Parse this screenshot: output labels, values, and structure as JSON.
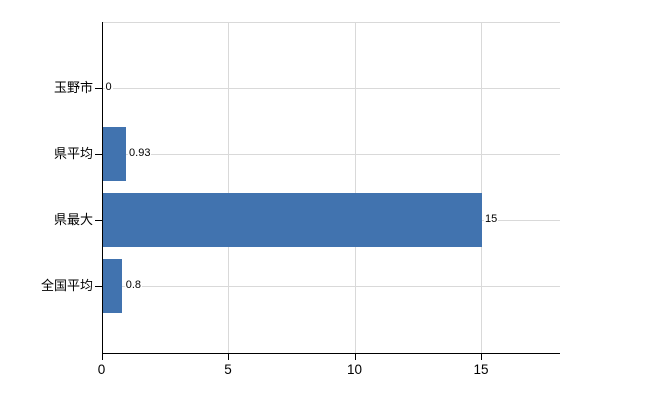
{
  "chart_data": {
    "type": "bar",
    "orientation": "horizontal",
    "title": "",
    "categories": [
      "玉野市",
      "県平均",
      "県最大",
      "全国平均"
    ],
    "values": [
      0,
      0.93,
      15,
      0.8
    ],
    "value_labels": [
      "0",
      "0.93",
      "15",
      "0.8"
    ],
    "x_tick_labels": [
      "0",
      "5",
      "10",
      "15"
    ],
    "x_tick_values": [
      0,
      5,
      10,
      15
    ],
    "xlim": [
      0,
      18.1
    ],
    "grid": true,
    "legend": false,
    "colors": {
      "bar": "#4173af",
      "grid": "#d9d9d9",
      "axis": "#000000",
      "text": "#000000"
    }
  }
}
